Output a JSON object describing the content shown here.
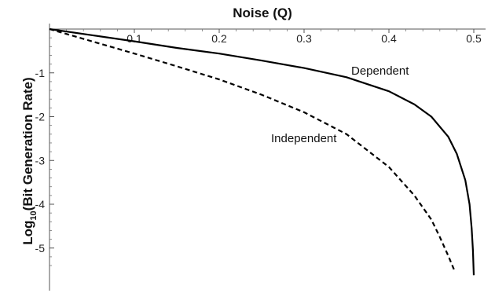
{
  "chart_data": {
    "type": "line",
    "title": "",
    "xlabel": "Noise (Q)",
    "ylabel_main": "Log",
    "ylabel_sub": "10",
    "ylabel_rest": "(Bit Generation Rate)",
    "xlim": [
      0,
      0.5
    ],
    "ylim": [
      -5.65,
      0
    ],
    "x_axis_position": "top",
    "grid": false,
    "legend": "none",
    "x_ticks": [
      {
        "value": 0.1,
        "label": "0.1"
      },
      {
        "value": 0.2,
        "label": "0.2"
      },
      {
        "value": 0.3,
        "label": "0.3"
      },
      {
        "value": 0.4,
        "label": "0.4"
      },
      {
        "value": 0.5,
        "label": "0.5"
      }
    ],
    "y_ticks": [
      {
        "value": -1,
        "label": "-1"
      },
      {
        "value": -2,
        "label": "-2"
      },
      {
        "value": -3,
        "label": "-3"
      },
      {
        "value": -4,
        "label": "-4"
      },
      {
        "value": -5,
        "label": "-5"
      }
    ],
    "series": [
      {
        "name": "Dependent",
        "style": "solid",
        "color": "#000000",
        "x": [
          0,
          0.05,
          0.1,
          0.15,
          0.2,
          0.25,
          0.3,
          0.35,
          0.4,
          0.43,
          0.45,
          0.47,
          0.48,
          0.49,
          0.495,
          0.4975,
          0.499,
          0.5
        ],
        "y": [
          0,
          -0.14,
          -0.28,
          -0.43,
          -0.56,
          -0.72,
          -0.89,
          -1.1,
          -1.42,
          -1.72,
          -2.0,
          -2.46,
          -2.85,
          -3.45,
          -4.0,
          -4.55,
          -5.05,
          -5.62
        ]
      },
      {
        "name": "Independent",
        "style": "dashed",
        "color": "#000000",
        "x": [
          0,
          0.05,
          0.1,
          0.15,
          0.2,
          0.25,
          0.3,
          0.35,
          0.4,
          0.43,
          0.45,
          0.46,
          0.47,
          0.478
        ],
        "y": [
          0,
          -0.28,
          -0.56,
          -0.85,
          -1.15,
          -1.5,
          -1.9,
          -2.4,
          -3.15,
          -3.8,
          -4.35,
          -4.75,
          -5.18,
          -5.55
        ]
      }
    ]
  }
}
